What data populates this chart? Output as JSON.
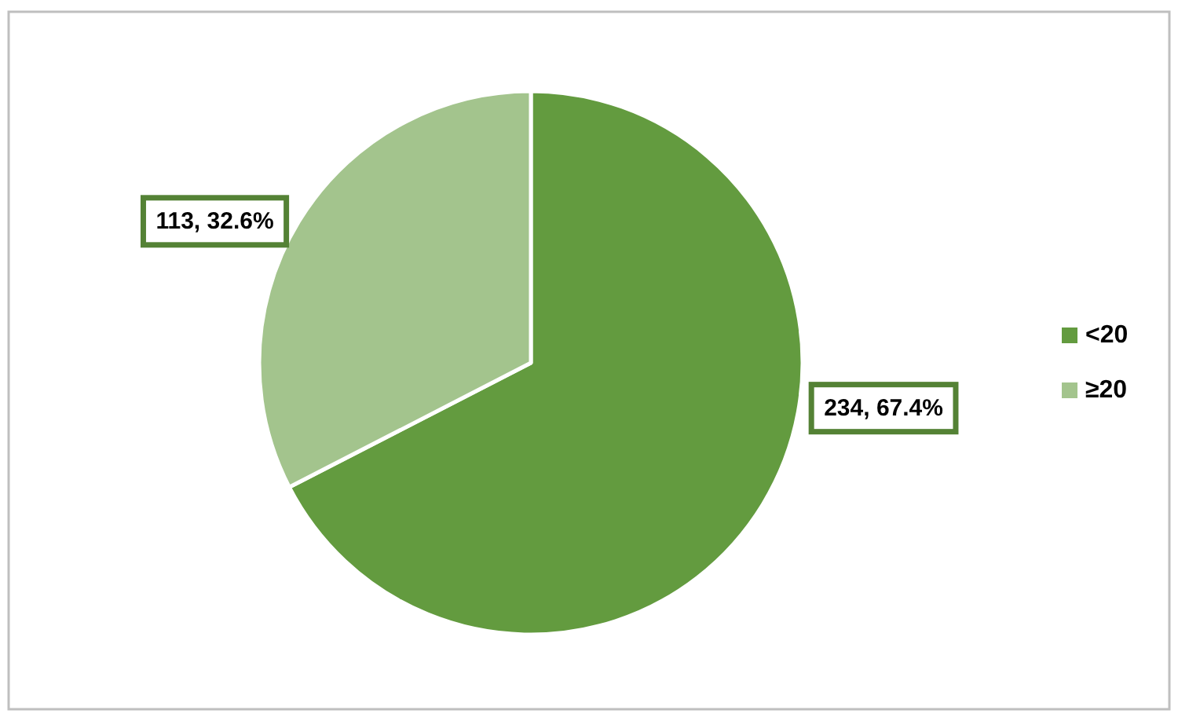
{
  "chart_data": {
    "type": "pie",
    "categories": [
      "<20",
      "≥20"
    ],
    "values": [
      234,
      113
    ],
    "colors": [
      "#639b3f",
      "#a3c48d"
    ],
    "value_labels": [
      "234, 67.4%",
      "113, 32.6%"
    ],
    "legend": "right"
  }
}
